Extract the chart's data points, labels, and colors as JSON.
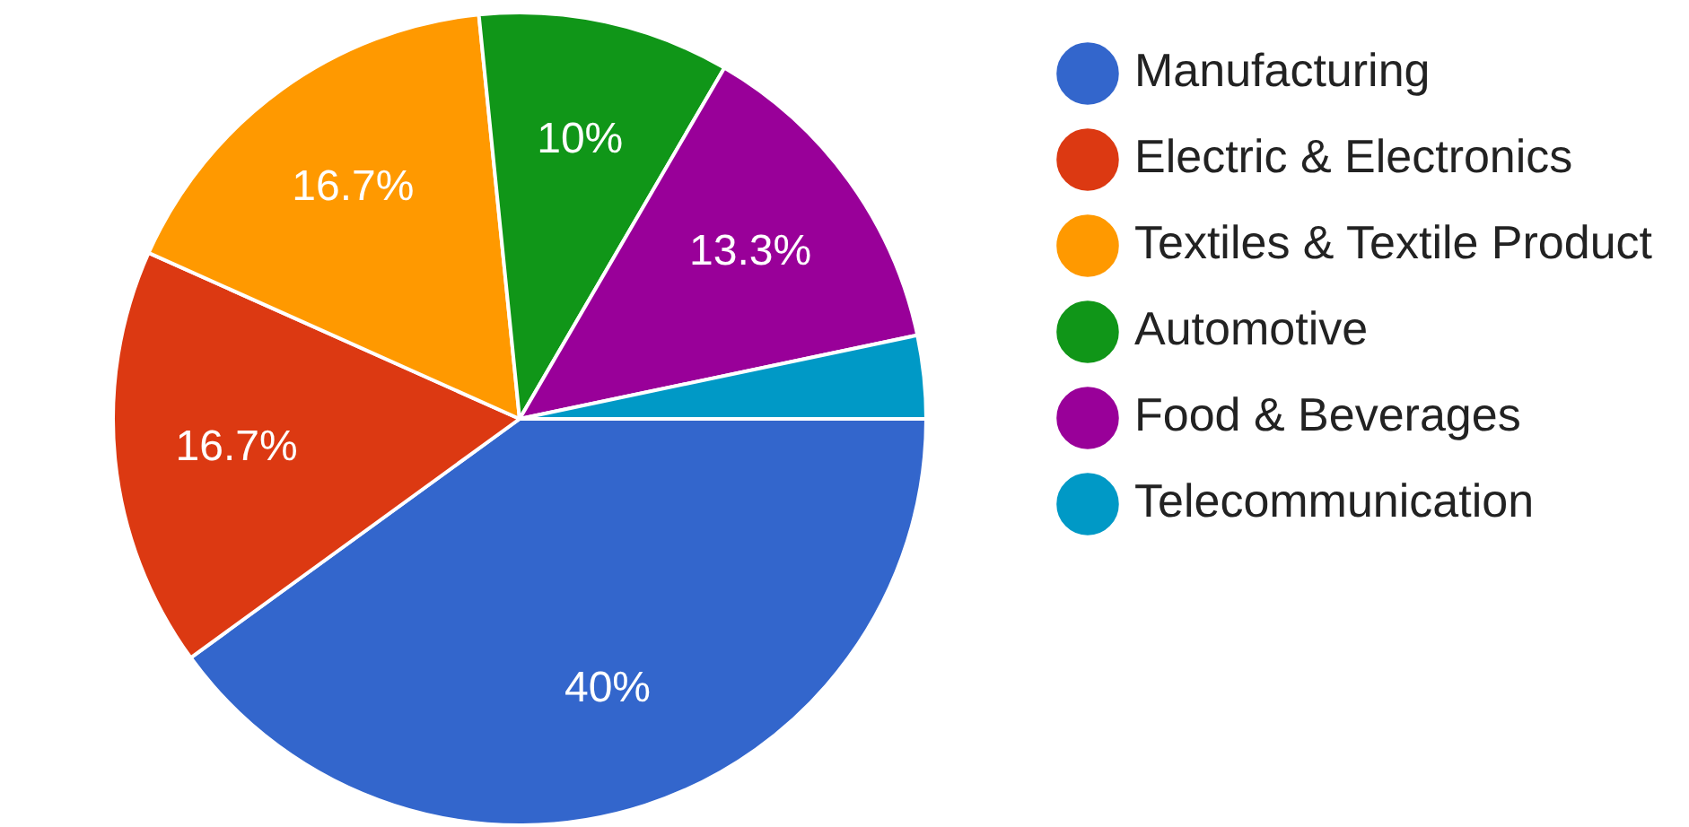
{
  "chart_data": {
    "type": "pie",
    "categories": [
      "Manufacturing",
      "Electric & Electronics",
      "Textiles & Textile Product",
      "Automotive",
      "Food & Beverages",
      "Telecommunication"
    ],
    "values": [
      40,
      16.7,
      16.7,
      10,
      13.3,
      3.3
    ],
    "colors": [
      "#3366cc",
      "#dc3912",
      "#ff9900",
      "#109618",
      "#990099",
      "#0099c6"
    ],
    "value_labels": [
      "40%",
      "16.7%",
      "16.7%",
      "10%",
      "13.3%",
      null
    ],
    "legend": "right"
  }
}
